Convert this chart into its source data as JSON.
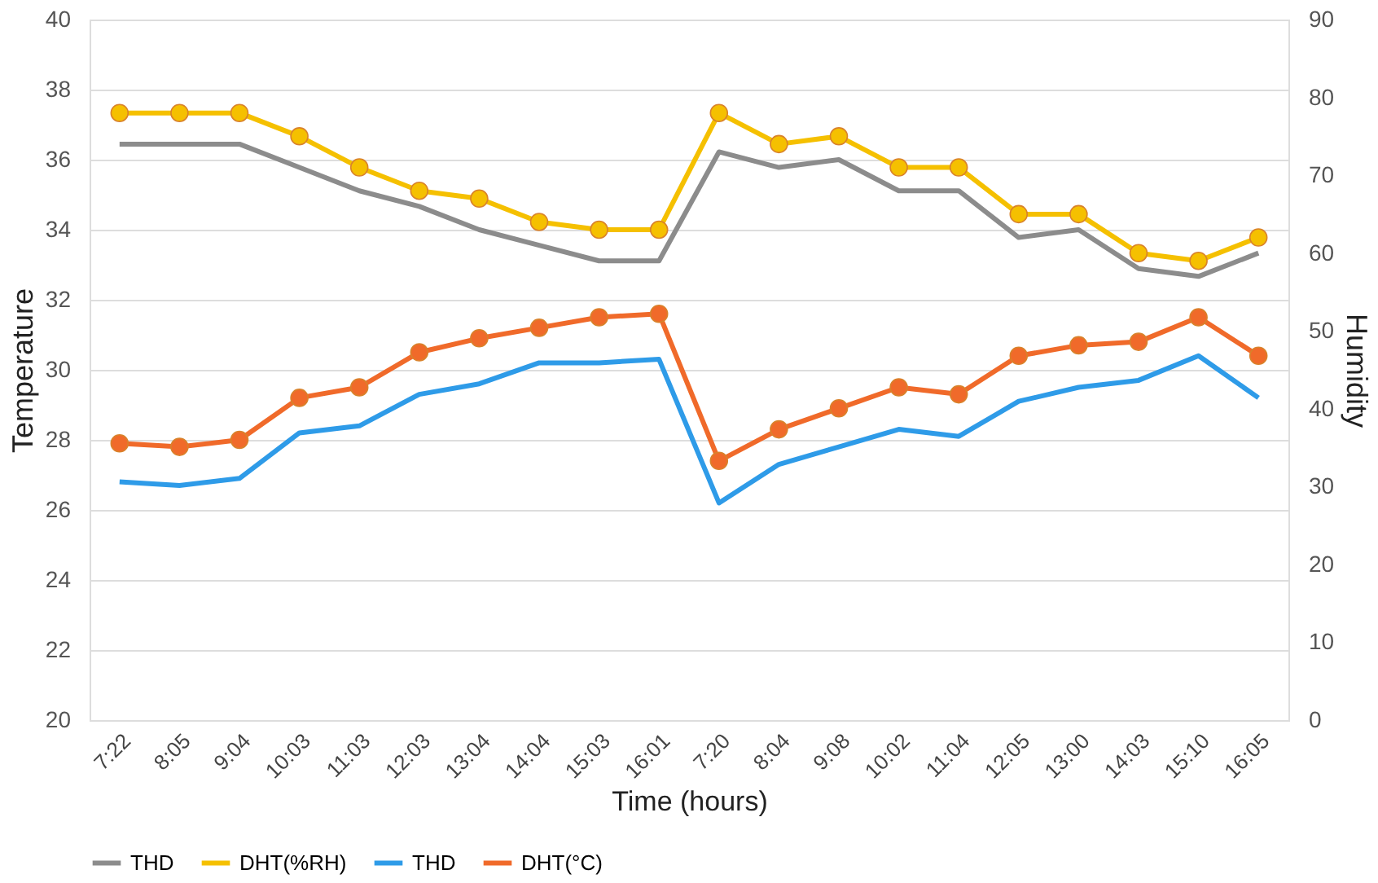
{
  "chart_data": {
    "type": "line",
    "xlabel": "Time (hours)",
    "ylabel": "Temperature",
    "y2label": "Humidity",
    "categories": [
      "7:22",
      "8:05",
      "9:04",
      "10:03",
      "11:03",
      "12:03",
      "13:04",
      "14:04",
      "15:03",
      "16:01",
      "7:20",
      "8:04",
      "9:08",
      "10:02",
      "11:04",
      "12:05",
      "13:00",
      "14:03",
      "15:10",
      "16:05"
    ],
    "series": [
      {
        "name": "THD",
        "color": "#8c8c8c",
        "axis": "y2",
        "marker": "none",
        "values": [
          74,
          74,
          74,
          71,
          68,
          66,
          63,
          61,
          59,
          59,
          73,
          71,
          72,
          68,
          68,
          62,
          63,
          58,
          57,
          60
        ]
      },
      {
        "name": "DHT(%RH)",
        "color": "#f5c000",
        "axis": "y2",
        "marker": "circle",
        "values": [
          78,
          78,
          78,
          75,
          71,
          68,
          67,
          64,
          63,
          63,
          78,
          74,
          75,
          71,
          71,
          65,
          65,
          60,
          59,
          62
        ]
      },
      {
        "name": "THD",
        "color": "#2e9be8",
        "axis": "y",
        "marker": "none",
        "values": [
          26.8,
          26.7,
          26.9,
          28.2,
          28.4,
          29.3,
          29.6,
          30.2,
          30.2,
          30.3,
          26.2,
          27.3,
          27.8,
          28.3,
          28.1,
          29.1,
          29.5,
          29.7,
          30.4,
          29.2
        ]
      },
      {
        "name": "DHT(°C)",
        "color": "#f06a2a",
        "axis": "y",
        "marker": "circle",
        "values": [
          27.9,
          27.8,
          28.0,
          29.2,
          29.5,
          30.5,
          30.9,
          31.2,
          31.5,
          31.6,
          27.4,
          28.3,
          28.9,
          29.5,
          29.3,
          30.4,
          30.7,
          30.8,
          31.5,
          30.4
        ]
      }
    ],
    "ylim": [
      20,
      40
    ],
    "yticks": [
      20,
      22,
      24,
      26,
      28,
      30,
      32,
      34,
      36,
      38,
      40
    ],
    "y2lim": [
      0,
      90
    ],
    "y2ticks": [
      0,
      10,
      20,
      30,
      40,
      50,
      60,
      70,
      80,
      90
    ],
    "grid": "y",
    "legend": "bottom",
    "line_style": "solid"
  }
}
